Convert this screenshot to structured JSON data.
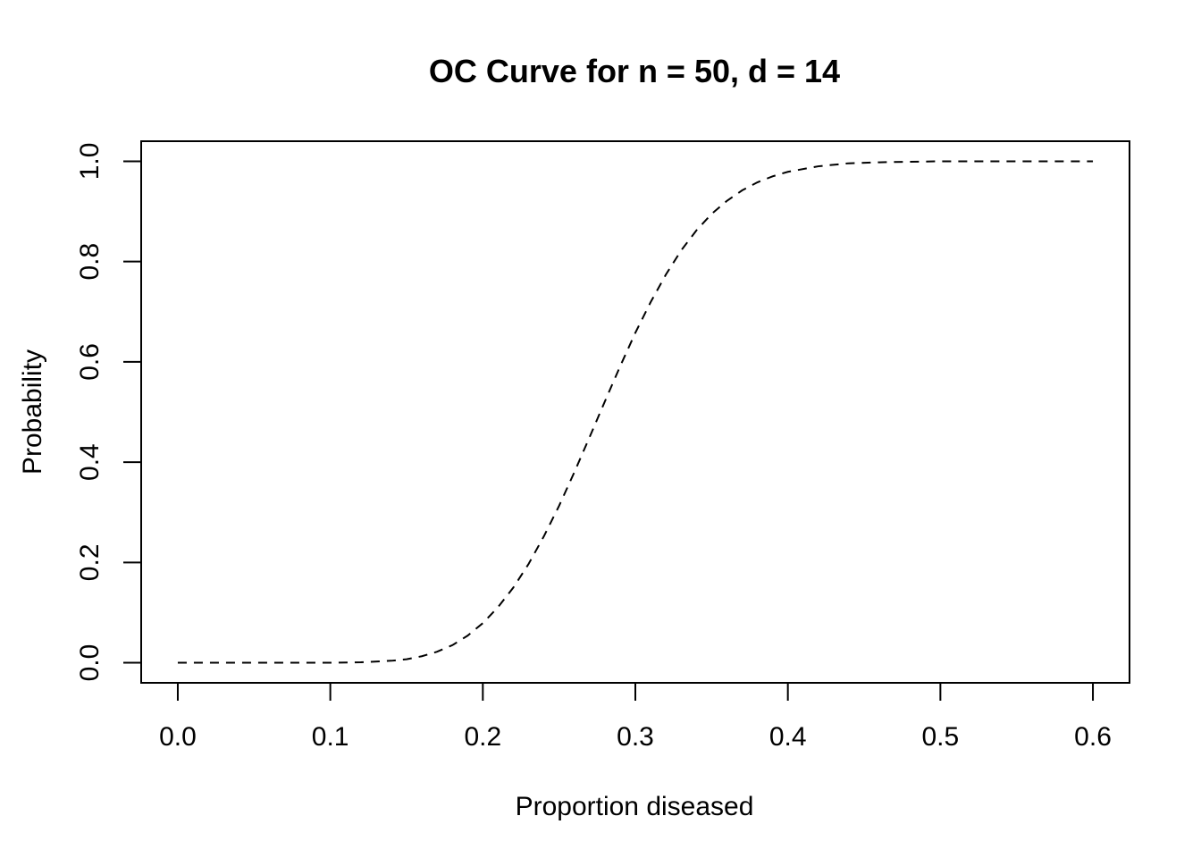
{
  "chart_data": {
    "type": "line",
    "title": "OC Curve for n = 50, d = 14",
    "xlabel": "Proportion diseased",
    "ylabel": "Probability",
    "xlim": [
      -0.024,
      0.624
    ],
    "ylim": [
      -0.04,
      1.04
    ],
    "x_ticks": [
      0.0,
      0.1,
      0.2,
      0.3,
      0.4,
      0.5,
      0.6
    ],
    "x_tick_labels": [
      "0.0",
      "0.1",
      "0.2",
      "0.3",
      "0.4",
      "0.5",
      "0.6"
    ],
    "y_ticks": [
      0.0,
      0.2,
      0.4,
      0.6,
      0.8,
      1.0
    ],
    "y_tick_labels": [
      "0.0",
      "0.2",
      "0.4",
      "0.6",
      "0.8",
      "1.0"
    ],
    "grid": false,
    "line_style": "dashed",
    "line_color": "#000000",
    "series": [
      {
        "x": [
          0.0,
          0.02,
          0.04,
          0.06,
          0.08,
          0.1,
          0.12,
          0.14,
          0.15,
          0.16,
          0.17,
          0.18,
          0.19,
          0.2,
          0.21,
          0.22,
          0.23,
          0.24,
          0.25,
          0.26,
          0.27,
          0.28,
          0.29,
          0.3,
          0.31,
          0.32,
          0.33,
          0.34,
          0.35,
          0.36,
          0.37,
          0.38,
          0.39,
          0.4,
          0.42,
          0.44,
          0.46,
          0.48,
          0.5,
          0.52,
          0.54,
          0.56,
          0.58,
          0.6
        ],
        "y": [
          0.0,
          0.0,
          0.0,
          0.0,
          0.0,
          0.0,
          0.001,
          0.004,
          0.007,
          0.013,
          0.022,
          0.035,
          0.054,
          0.079,
          0.111,
          0.15,
          0.197,
          0.252,
          0.313,
          0.38,
          0.45,
          0.521,
          0.591,
          0.658,
          0.719,
          0.774,
          0.822,
          0.862,
          0.895,
          0.921,
          0.942,
          0.958,
          0.97,
          0.979,
          0.99,
          0.996,
          0.998,
          0.999,
          1.0,
          1.0,
          1.0,
          1.0,
          1.0,
          1.0
        ]
      }
    ]
  }
}
